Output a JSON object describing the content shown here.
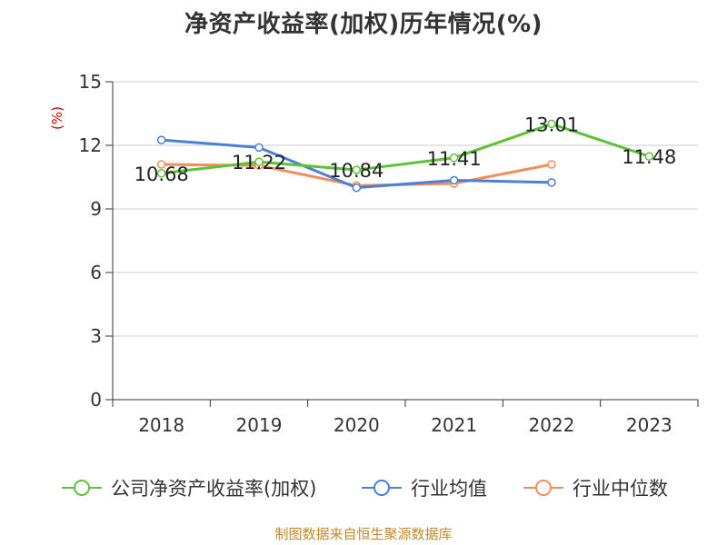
{
  "title": "净资产收益率(加权)历年情况(%)",
  "source": "制图数据来自恒生聚源数据库",
  "chart_data": {
    "type": "line",
    "title": "净资产收益率(加权)历年情况(%)",
    "ylabel": "(%)",
    "xlabel": "",
    "categories": [
      "2018",
      "2019",
      "2020",
      "2021",
      "2022",
      "2023"
    ],
    "ylim": [
      0,
      15
    ],
    "yticks": [
      0,
      3,
      6,
      9,
      12,
      15
    ],
    "grid": true,
    "legend_position": "bottom",
    "series": [
      {
        "name": "公司净资产收益率(加权)",
        "color": "#5bc236",
        "values": [
          10.68,
          11.22,
          10.84,
          11.41,
          13.01,
          11.48
        ],
        "labels": [
          "10.68",
          "11.22",
          "10.84",
          "11.41",
          "13.01",
          "11.48"
        ]
      },
      {
        "name": "行业均值",
        "color": "#4a7fd8",
        "values": [
          12.25,
          11.9,
          10.0,
          10.35,
          10.25,
          null
        ],
        "labels": []
      },
      {
        "name": "行业中位数",
        "color": "#f48c5a",
        "values": [
          11.1,
          11.05,
          10.1,
          10.2,
          11.1,
          null
        ],
        "labels": []
      }
    ]
  }
}
